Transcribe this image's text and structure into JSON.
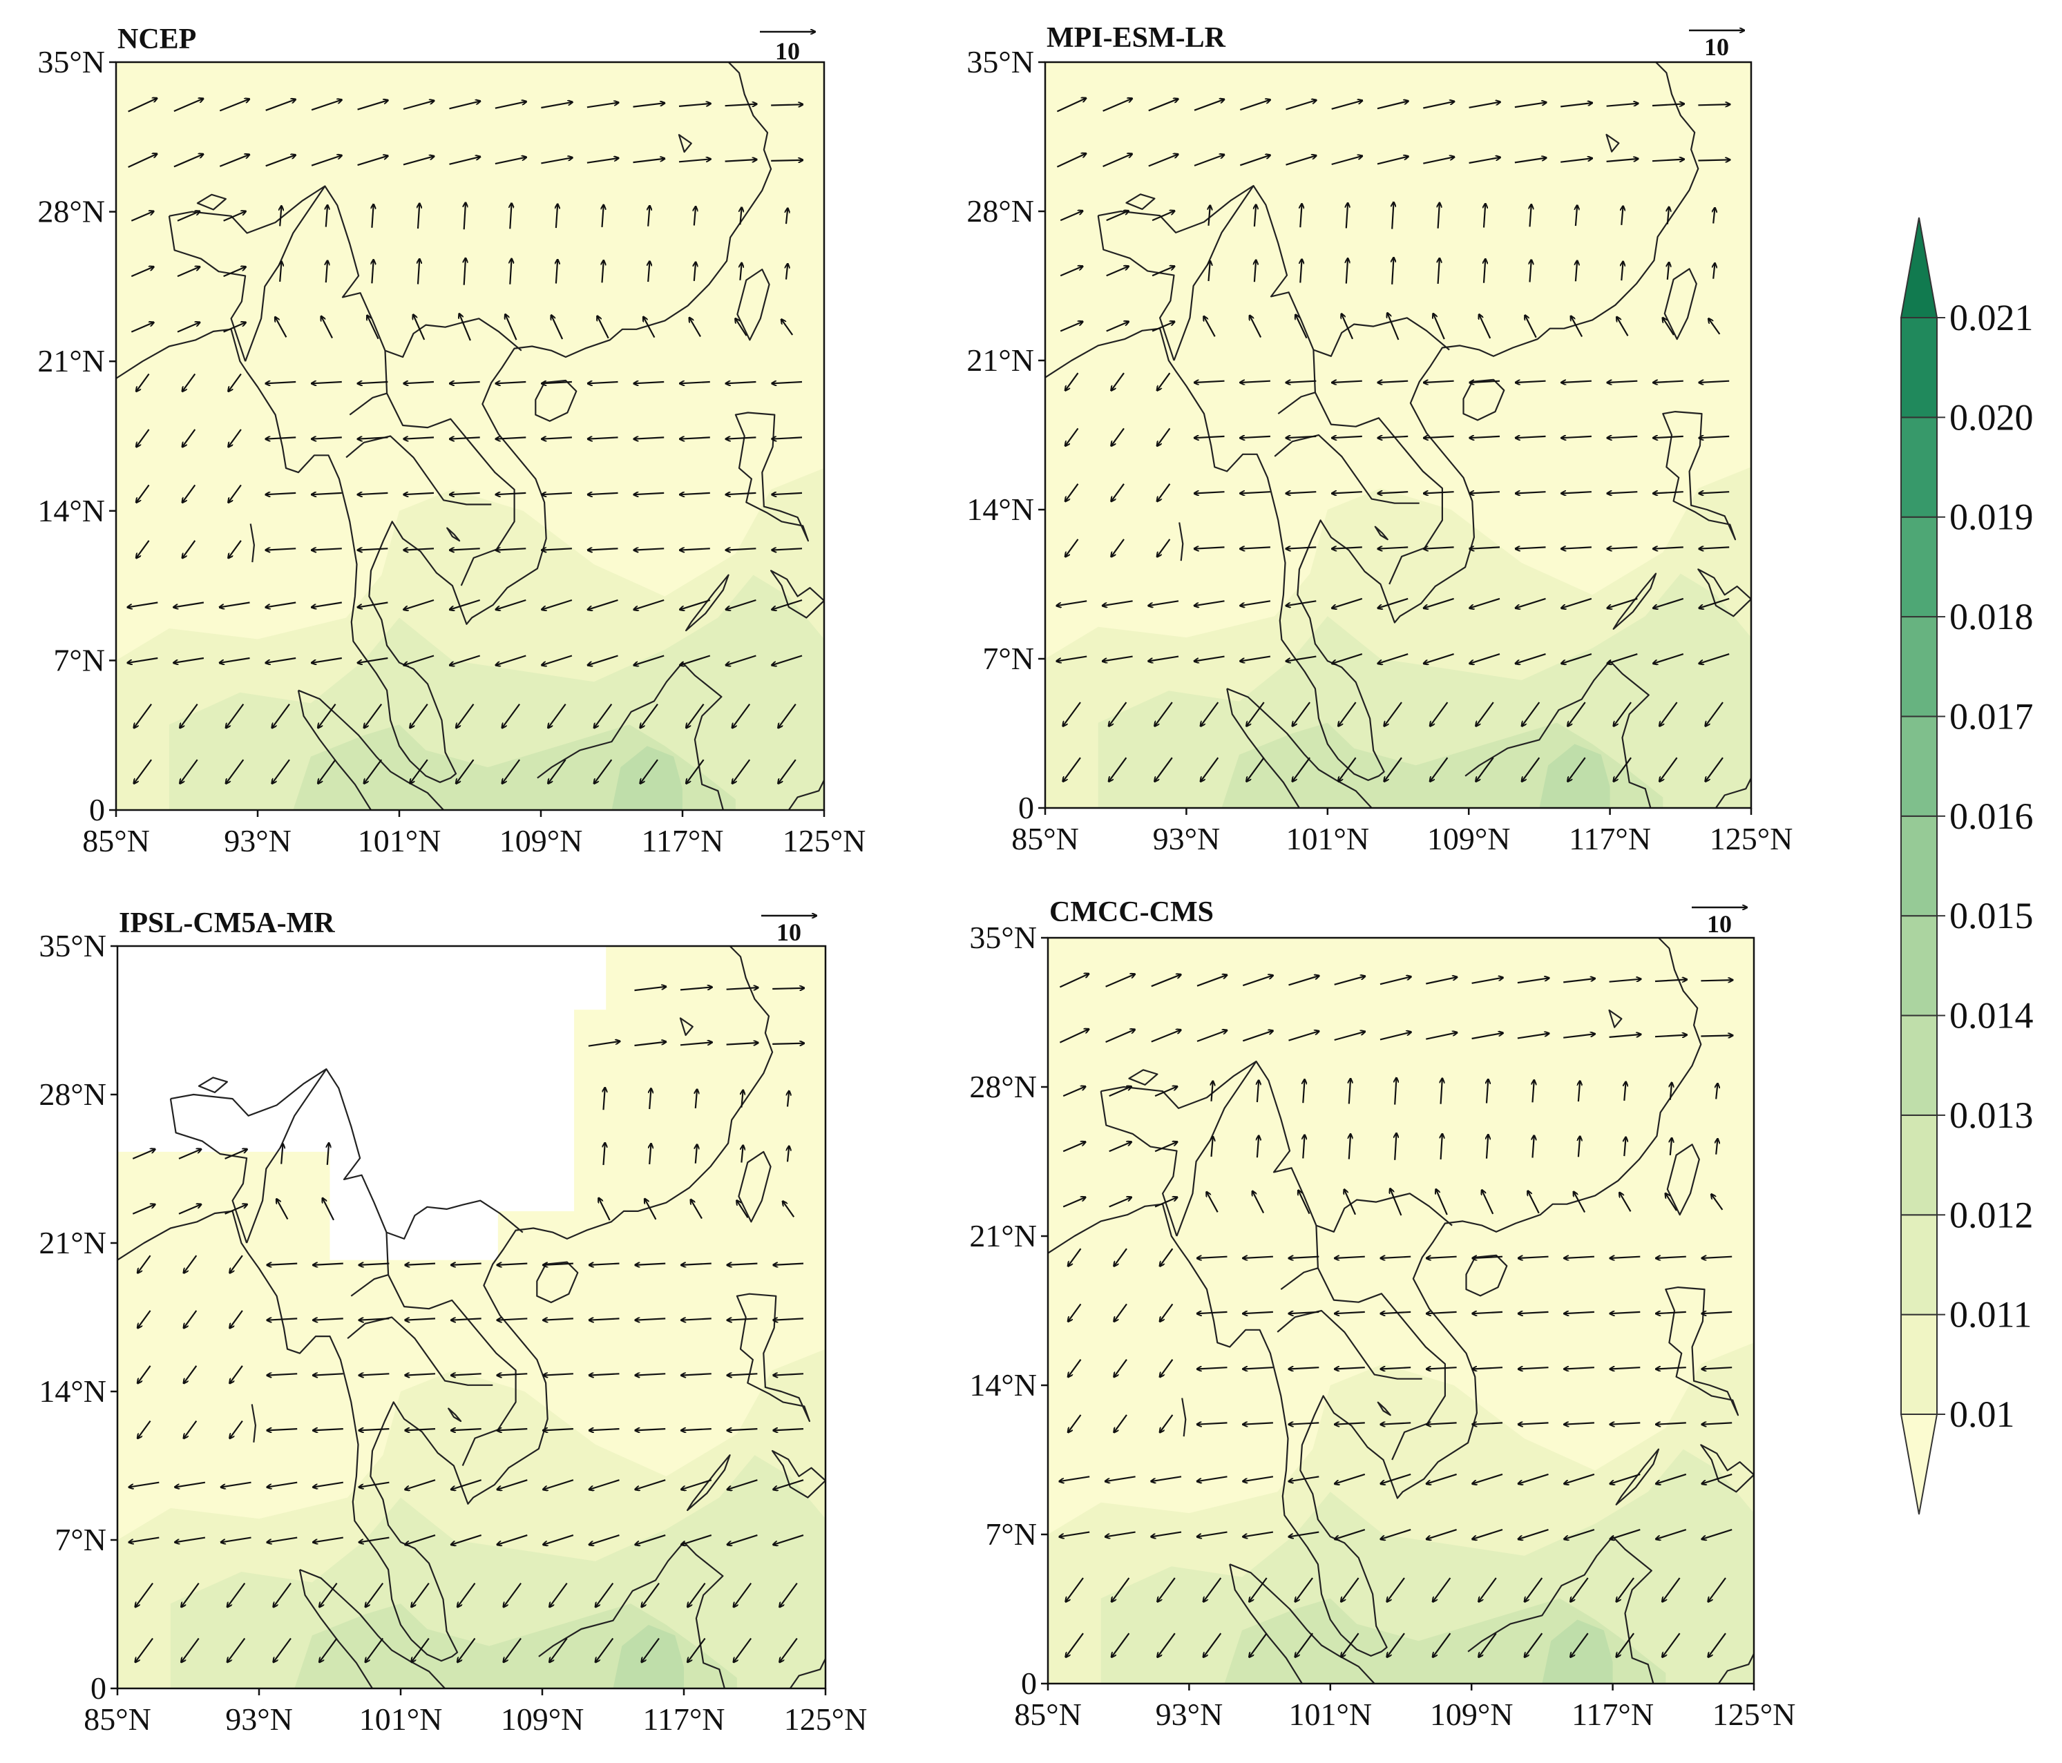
{
  "figure": {
    "panels": [
      {
        "id": "ncep",
        "title": "NCEP",
        "ref_vector": "10",
        "missing_region": false,
        "wind_pattern": "westerly-north-easterly-south"
      },
      {
        "id": "mpi",
        "title": "MPI-ESM-LR",
        "ref_vector": "10",
        "missing_region": false,
        "wind_pattern": "westerly-north-easterly-south"
      },
      {
        "id": "ipsl",
        "title": "IPSL-CM5A-MR",
        "ref_vector": "10",
        "missing_region": true,
        "wind_pattern": "westerly-north-easterly-south"
      },
      {
        "id": "cmcc",
        "title": "CMCC-CMS",
        "ref_vector": "10",
        "missing_region": false,
        "wind_pattern": "westerly-north-easterly-south"
      }
    ],
    "lat_ticks": [
      "0",
      "7°N",
      "14°N",
      "21°N",
      "28°N",
      "35°N"
    ],
    "lon_ticks": [
      "85°N",
      "93°N",
      "101°N",
      "109°N",
      "117°N",
      "125°N"
    ],
    "colorbar": {
      "labels": [
        "0.01",
        "0.011",
        "0.012",
        "0.013",
        "0.014",
        "0.015",
        "0.016",
        "0.017",
        "0.018",
        "0.019",
        "0.020",
        "0.021"
      ],
      "colors": [
        "#fbfbd0",
        "#f0f5c4",
        "#e2efbc",
        "#d2e7b2",
        "#bfdeaa",
        "#abd4a0",
        "#96ca96",
        "#7fbf8c",
        "#67b380",
        "#4ea775",
        "#37996a",
        "#20895c",
        "#117a4f"
      ]
    }
  }
}
